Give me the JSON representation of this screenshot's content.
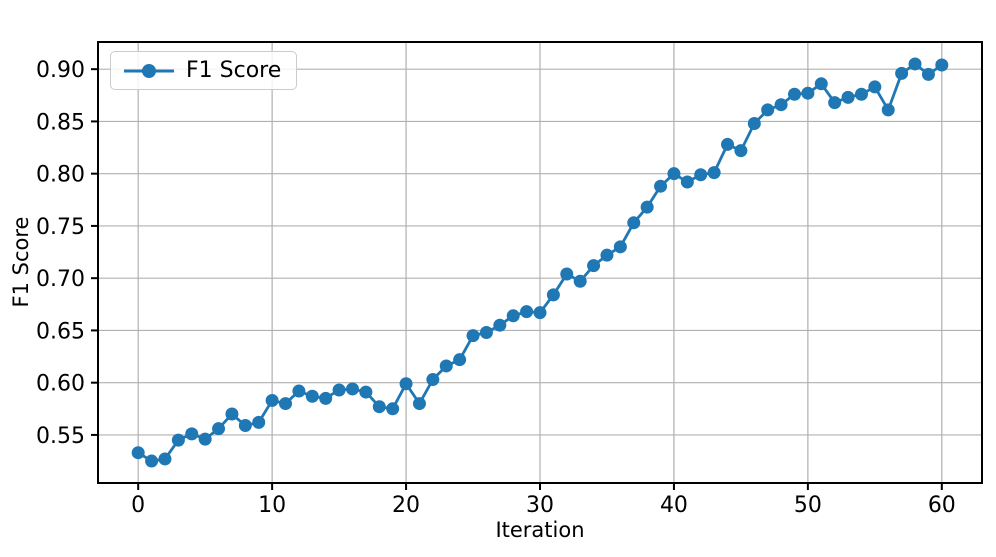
{
  "chart_data": {
    "type": "line",
    "title": "",
    "xlabel": "Iteration",
    "ylabel": "F1 Score",
    "xlim": [
      -3,
      63
    ],
    "ylim": [
      0.504,
      0.926
    ],
    "xticks": [
      0,
      10,
      20,
      30,
      40,
      50,
      60
    ],
    "yticks": [
      0.55,
      0.6,
      0.65,
      0.7,
      0.75,
      0.8,
      0.85,
      0.9
    ],
    "grid": true,
    "legend": {
      "position": "upper-left",
      "entries": [
        "F1 Score"
      ]
    },
    "style": {
      "line_color": "#1f77b4",
      "grid_color": "#b0b0b0",
      "spine_color": "#000000",
      "background": "#ffffff",
      "marker": "circle"
    },
    "series": [
      {
        "name": "F1 Score",
        "color": "#1f77b4",
        "x": [
          0,
          1,
          2,
          3,
          4,
          5,
          6,
          7,
          8,
          9,
          10,
          11,
          12,
          13,
          14,
          15,
          16,
          17,
          18,
          19,
          20,
          21,
          22,
          23,
          24,
          25,
          26,
          27,
          28,
          29,
          30,
          31,
          32,
          33,
          34,
          35,
          36,
          37,
          38,
          39,
          40,
          41,
          42,
          43,
          44,
          45,
          46,
          47,
          48,
          49,
          50,
          51,
          52,
          53,
          54,
          55,
          56,
          57,
          58,
          59,
          60
        ],
        "y": [
          0.533,
          0.525,
          0.527,
          0.545,
          0.551,
          0.546,
          0.556,
          0.57,
          0.559,
          0.562,
          0.583,
          0.58,
          0.592,
          0.587,
          0.585,
          0.593,
          0.594,
          0.591,
          0.577,
          0.575,
          0.599,
          0.58,
          0.603,
          0.616,
          0.622,
          0.645,
          0.648,
          0.655,
          0.664,
          0.668,
          0.667,
          0.684,
          0.704,
          0.697,
          0.712,
          0.722,
          0.73,
          0.753,
          0.768,
          0.788,
          0.8,
          0.792,
          0.799,
          0.801,
          0.828,
          0.822,
          0.848,
          0.861,
          0.866,
          0.876,
          0.877,
          0.886,
          0.868,
          0.873,
          0.876,
          0.883,
          0.861,
          0.896,
          0.905,
          0.895,
          0.904
        ]
      }
    ]
  }
}
